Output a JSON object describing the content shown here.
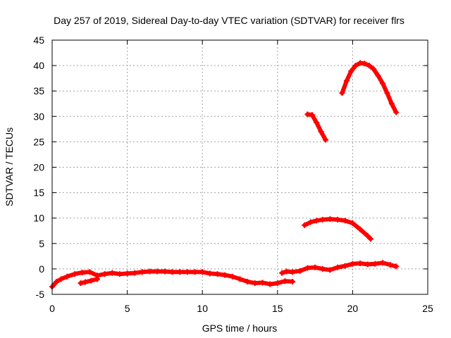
{
  "chart_data": {
    "type": "scatter",
    "title": "Day 257 of 2019, Sidereal Day-to-day VTEC variation (SDTVAR) for receiver flrs",
    "xlabel": "GPS time / hours",
    "ylabel": "SDTVAR / TECUs",
    "xlim": [
      0,
      25
    ],
    "ylim": [
      -5,
      45
    ],
    "xticks": [
      0,
      5,
      10,
      15,
      20,
      25
    ],
    "yticks": [
      -5,
      0,
      5,
      10,
      15,
      20,
      25,
      30,
      35,
      40,
      45
    ],
    "grid": true,
    "legend": "none",
    "color": "#ff0000",
    "series": [
      {
        "x": [
          0.0,
          0.3,
          0.6,
          1.0,
          1.5,
          2.0,
          2.5,
          3.0,
          3.5,
          4.0,
          4.5,
          5.0,
          5.5,
          6.0,
          6.5,
          7.0,
          7.5,
          8.0,
          8.5,
          9.0,
          9.5,
          10.0,
          10.5,
          11.0,
          11.5,
          12.0,
          12.5,
          13.0,
          13.5,
          14.0,
          14.5,
          15.0,
          15.5,
          16.0
        ],
        "y": [
          -3.5,
          -2.5,
          -2.0,
          -1.5,
          -1.0,
          -0.7,
          -0.6,
          -1.3,
          -1.0,
          -0.8,
          -1.0,
          -0.9,
          -0.8,
          -0.6,
          -0.5,
          -0.5,
          -0.5,
          -0.6,
          -0.6,
          -0.6,
          -0.6,
          -0.6,
          -0.9,
          -1.0,
          -1.2,
          -1.5,
          -2.0,
          -2.5,
          -2.8,
          -2.7,
          -3.0,
          -2.8,
          -2.4,
          -2.5
        ]
      },
      {
        "x": [
          1.9,
          2.2,
          2.6,
          3.0
        ],
        "y": [
          -2.8,
          -2.6,
          -2.3,
          -2.0
        ]
      },
      {
        "x": [
          15.3,
          15.6,
          16.0,
          16.5,
          17.0,
          17.5,
          18.0,
          18.5,
          19.0,
          19.5,
          20.0,
          20.5,
          21.0,
          21.5,
          22.0,
          22.5,
          22.9
        ],
        "y": [
          -0.8,
          -0.5,
          -0.6,
          -0.4,
          0.2,
          0.3,
          0.0,
          -0.2,
          0.3,
          0.6,
          1.0,
          1.1,
          0.9,
          1.0,
          1.2,
          0.8,
          0.5
        ]
      },
      {
        "x": [
          16.8,
          17.2,
          17.6,
          18.0,
          18.5,
          19.0,
          19.5,
          20.0,
          20.5,
          21.0,
          21.2
        ],
        "y": [
          8.6,
          9.2,
          9.5,
          9.7,
          9.8,
          9.7,
          9.5,
          9.0,
          7.8,
          6.5,
          5.9
        ]
      },
      {
        "x": [
          17.0,
          17.3,
          17.6,
          17.9,
          18.2
        ],
        "y": [
          30.4,
          30.3,
          28.8,
          27.0,
          25.4
        ]
      },
      {
        "x": [
          19.3,
          19.6,
          19.9,
          20.2,
          20.5,
          20.8,
          21.1,
          21.4,
          21.7,
          22.0,
          22.3,
          22.6,
          22.9
        ],
        "y": [
          34.6,
          37.0,
          38.9,
          40.0,
          40.5,
          40.4,
          40.0,
          39.3,
          38.0,
          36.5,
          34.6,
          32.5,
          30.8
        ]
      }
    ]
  }
}
